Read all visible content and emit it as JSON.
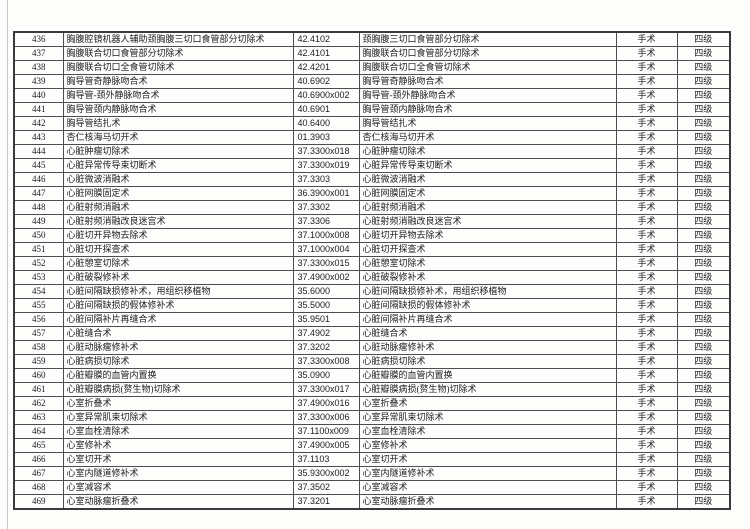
{
  "table": {
    "rows": [
      {
        "no": "436",
        "name": "胸腹腔镜机器人辅助颈胸腹三切口食管部分切除术",
        "code": "42.4102",
        "name2": "颈胸腹三切口食管部分切除术",
        "category": "手术",
        "level": "四级"
      },
      {
        "no": "437",
        "name": "胸腹联合切口食管部分切除术",
        "code": "42.4101",
        "name2": "胸腹联合切口食管部分切除术",
        "category": "手术",
        "level": "四级"
      },
      {
        "no": "438",
        "name": "胸腹联合切口全食管切除术",
        "code": "42.4201",
        "name2": "胸腹联合切口全食管切除术",
        "category": "手术",
        "level": "四级"
      },
      {
        "no": "439",
        "name": "胸导管奇静脉吻合术",
        "code": "40.6902",
        "name2": "胸导管奇静脉吻合术",
        "category": "手术",
        "level": "四级"
      },
      {
        "no": "440",
        "name": "胸导管-颈外静脉吻合术",
        "code": "40.6900x002",
        "name2": "胸导管-颈外静脉吻合术",
        "category": "手术",
        "level": "四级"
      },
      {
        "no": "441",
        "name": "胸导管颈内静脉吻合术",
        "code": "40.6901",
        "name2": "胸导管颈内静脉吻合术",
        "category": "手术",
        "level": "四级"
      },
      {
        "no": "442",
        "name": "胸导管结扎术",
        "code": "40.6400",
        "name2": "胸导管结扎术",
        "category": "手术",
        "level": "四级"
      },
      {
        "no": "443",
        "name": "杏仁核海马切开术",
        "code": "01.3903",
        "name2": "杏仁核海马切开术",
        "category": "手术",
        "level": "四级"
      },
      {
        "no": "444",
        "name": "心脏肿瘤切除术",
        "code": "37.3300x018",
        "name2": "心脏肿瘤切除术",
        "category": "手术",
        "level": "四级"
      },
      {
        "no": "445",
        "name": "心脏异常传导束切断术",
        "code": "37.3300x019",
        "name2": "心脏异常传导束切断术",
        "category": "手术",
        "level": "四级"
      },
      {
        "no": "446",
        "name": "心脏微波消融术",
        "code": "37.3303",
        "name2": "心脏微波消融术",
        "category": "手术",
        "level": "四级"
      },
      {
        "no": "447",
        "name": "心脏网膜固定术",
        "code": "36.3900x001",
        "name2": "心脏网膜固定术",
        "category": "手术",
        "level": "四级"
      },
      {
        "no": "448",
        "name": "心脏射频消融术",
        "code": "37.3302",
        "name2": "心脏射频消融术",
        "category": "手术",
        "level": "四级"
      },
      {
        "no": "449",
        "name": "心脏射频消融改良迷宫术",
        "code": "37.3306",
        "name2": "心脏射频消融改良迷宫术",
        "category": "手术",
        "level": "四级"
      },
      {
        "no": "450",
        "name": "心脏切开异物去除术",
        "code": "37.1000x008",
        "name2": "心脏切开异物去除术",
        "category": "手术",
        "level": "四级"
      },
      {
        "no": "451",
        "name": "心脏切开探查术",
        "code": "37.1000x004",
        "name2": "心脏切开探查术",
        "category": "手术",
        "level": "四级"
      },
      {
        "no": "452",
        "name": "心脏憩室切除术",
        "code": "37.3300x015",
        "name2": "心脏憩室切除术",
        "category": "手术",
        "level": "四级"
      },
      {
        "no": "453",
        "name": "心脏破裂修补术",
        "code": "37.4900x002",
        "name2": "心脏破裂修补术",
        "category": "手术",
        "level": "四级"
      },
      {
        "no": "454",
        "name": "心脏间隔缺损修补术，用组织移植物",
        "code": "35.6000",
        "name2": "心脏间隔缺损修补术，用组织移植物",
        "category": "手术",
        "level": "四级"
      },
      {
        "no": "455",
        "name": "心脏间隔缺损的假体修补术",
        "code": "35.5000",
        "name2": "心脏间隔缺损的假体修补术",
        "category": "手术",
        "level": "四级"
      },
      {
        "no": "456",
        "name": "心脏间隔补片再缝合术",
        "code": "35.9501",
        "name2": "心脏间隔补片再缝合术",
        "category": "手术",
        "level": "四级"
      },
      {
        "no": "457",
        "name": "心脏缝合术",
        "code": "37.4902",
        "name2": "心脏缝合术",
        "category": "手术",
        "level": "四级"
      },
      {
        "no": "458",
        "name": "心脏动脉瘤修补术",
        "code": "37.3202",
        "name2": "心脏动脉瘤修补术",
        "category": "手术",
        "level": "四级"
      },
      {
        "no": "459",
        "name": "心脏病损切除术",
        "code": "37.3300x008",
        "name2": "心脏病损切除术",
        "category": "手术",
        "level": "四级"
      },
      {
        "no": "460",
        "name": "心脏瓣膜的血管内置换",
        "code": "35.0900",
        "name2": "心脏瓣膜的血管内置换",
        "category": "手术",
        "level": "四级"
      },
      {
        "no": "461",
        "name": "心脏瓣膜病损(赘生物)切除术",
        "code": "37.3300x017",
        "name2": "心脏瓣膜病损(赘生物)切除术",
        "category": "手术",
        "level": "四级"
      },
      {
        "no": "462",
        "name": "心室折叠术",
        "code": "37.4900x016",
        "name2": "心室折叠术",
        "category": "手术",
        "level": "四级"
      },
      {
        "no": "463",
        "name": "心室异常肌束切除术",
        "code": "37.3300x006",
        "name2": "心室异常肌束切除术",
        "category": "手术",
        "level": "四级"
      },
      {
        "no": "464",
        "name": "心室血栓清除术",
        "code": "37.1100x009",
        "name2": "心室血栓清除术",
        "category": "手术",
        "level": "四级"
      },
      {
        "no": "465",
        "name": "心室修补术",
        "code": "37.4900x005",
        "name2": "心室修补术",
        "category": "手术",
        "level": "四级"
      },
      {
        "no": "466",
        "name": "心室切开术",
        "code": "37.1103",
        "name2": "心室切开术",
        "category": "手术",
        "level": "四级"
      },
      {
        "no": "467",
        "name": "心室内隧道修补术",
        "code": "35.9300x002",
        "name2": "心室内隧道修补术",
        "category": "手术",
        "level": "四级"
      },
      {
        "no": "468",
        "name": "心室减容术",
        "code": "37.3502",
        "name2": "心室减容术",
        "category": "手术",
        "level": "四级"
      },
      {
        "no": "469",
        "name": "心室动脉瘤折叠术",
        "code": "37.3201",
        "name2": "心室动脉瘤折叠术",
        "category": "手术",
        "level": "四级"
      }
    ]
  }
}
